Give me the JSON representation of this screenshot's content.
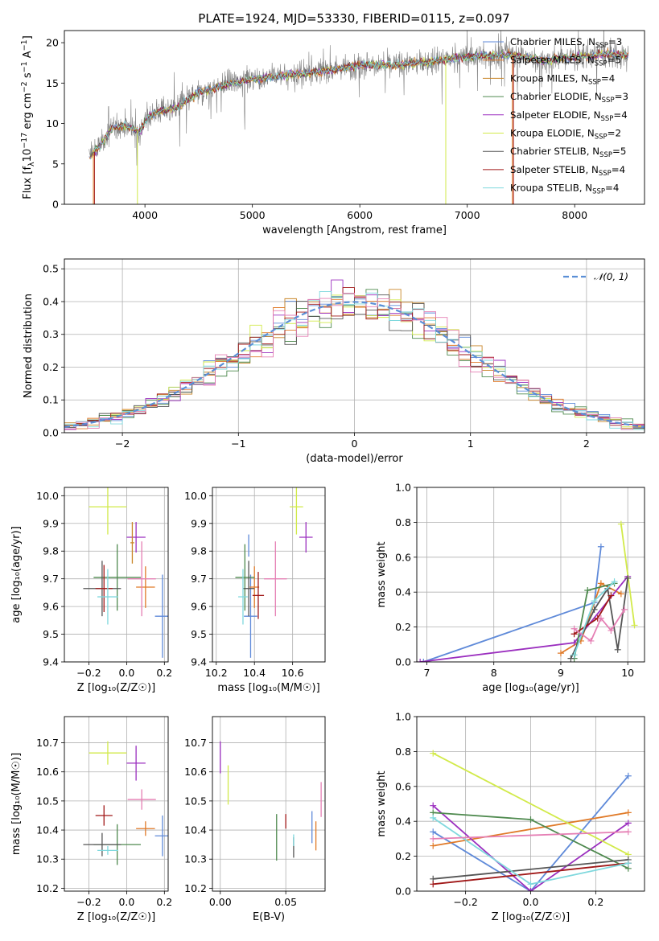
{
  "figure": {
    "title": "PLATE=1924, MJD=53330, FIBERID=0115, z=0.097"
  },
  "models": [
    {
      "label": "Chabrier MILES, N",
      "sub": "SSP",
      "tail": "=3",
      "color": "#5f8ad9"
    },
    {
      "label": "Salpeter MILES, N",
      "sub": "SSP",
      "tail": "=5",
      "color": "#e07a28"
    },
    {
      "label": "Kroupa MILES, N",
      "sub": "SSP",
      "tail": "=4",
      "color": "#c9862a"
    },
    {
      "label": "Chabrier ELODIE, N",
      "sub": "SSP",
      "tail": "=3",
      "color": "#4f8a4f"
    },
    {
      "label": "Salpeter ELODIE, N",
      "sub": "SSP",
      "tail": "=4",
      "color": "#9b2fbf"
    },
    {
      "label": "Kroupa ELODIE, N",
      "sub": "SSP",
      "tail": "=2",
      "color": "#d2ea4a"
    },
    {
      "label": "Chabrier STELIB, N",
      "sub": "SSP",
      "tail": "=5",
      "color": "#555555"
    },
    {
      "label": "Salpeter STELIB, N",
      "sub": "SSP",
      "tail": "=4",
      "color": "#a01818"
    },
    {
      "label": "Kroupa STELIB, N",
      "sub": "SSP",
      "tail": "=4",
      "color": "#7fd8dd"
    }
  ],
  "extra_colors": {
    "pink": "#e57fb4",
    "data_gray": "#808080",
    "normal_curve": "#5b8fd6",
    "grid": "#b0b0b0"
  },
  "chart_data": [
    {
      "id": "spectrum",
      "type": "line",
      "xlabel": "wavelength [Angstrom, rest frame]",
      "ylabel_pre": "Flux [f",
      "ylabel_sub": "λ",
      "ylabel_mid": "10",
      "ylabel_sup1": "−17",
      "ylabel_post": " erg cm",
      "ylabel_sup2": "−2",
      "ylabel_s": " s",
      "ylabel_sup3": "−1",
      "ylabel_A": " A",
      "ylabel_sup4": "−1",
      "ylabel_end": "]",
      "xlim": [
        3250,
        8650
      ],
      "ylim": [
        0,
        21.5
      ],
      "xticks": [
        "4000",
        "5000",
        "6000",
        "7000",
        "8000"
      ],
      "yticks": [
        "0",
        "5",
        "10",
        "15",
        "20"
      ],
      "continuum_nodes": [
        [
          3480,
          5.8
        ],
        [
          3600,
          7.5
        ],
        [
          3700,
          9.5
        ],
        [
          3800,
          9.8
        ],
        [
          3950,
          9.0
        ],
        [
          4050,
          11.2
        ],
        [
          4300,
          12.0
        ],
        [
          4500,
          13.8
        ],
        [
          4800,
          15.0
        ],
        [
          5000,
          15.5
        ],
        [
          5200,
          15.8
        ],
        [
          5500,
          16.2
        ],
        [
          5800,
          16.8
        ],
        [
          6000,
          17.3
        ],
        [
          6300,
          17.2
        ],
        [
          6600,
          17.6
        ],
        [
          6900,
          18.1
        ],
        [
          7100,
          18.4
        ],
        [
          7400,
          18.5
        ],
        [
          7700,
          17.8
        ],
        [
          8000,
          18.2
        ],
        [
          8300,
          18.6
        ],
        [
          8500,
          18.3
        ]
      ]
    },
    {
      "id": "residuals",
      "type": "histogram",
      "xlabel": "(data-model)/error",
      "ylabel": "Normed distribution",
      "legend_label": "𝒩(0, 1)",
      "legend_position": "top-right",
      "xlim": [
        -2.5,
        2.5
      ],
      "ylim": [
        0,
        0.53
      ],
      "xticks": [
        "−2",
        "−1",
        "0",
        "1",
        "2"
      ],
      "yticks": [
        "0.0",
        "0.1",
        "0.2",
        "0.3",
        "0.4",
        "0.5"
      ],
      "bin_width": 0.1
    },
    {
      "id": "age_vs_Z",
      "type": "scatter",
      "xlabel": "Z [log₁₀(Z/Z☉)]",
      "ylabel": "age  [log₁₀(age/yr)]",
      "xlim": [
        -0.33,
        0.22
      ],
      "ylim": [
        9.4,
        10.03
      ],
      "xticks": [
        "−0.2",
        "0.0",
        "0.2"
      ],
      "yticks": [
        "9.4",
        "9.5",
        "9.6",
        "9.7",
        "9.8",
        "9.9",
        "10.0"
      ],
      "points": [
        {
          "c": "#5f8ad9",
          "x": 0.19,
          "xe": 0.08,
          "y": 9.565,
          "ye": 0.3
        },
        {
          "c": "#e07a28",
          "x": 0.1,
          "xe": 0.1,
          "y": 9.67,
          "ye": 0.15
        },
        {
          "c": "#9b2fbf",
          "x": 0.05,
          "xe": 0.1,
          "y": 9.85,
          "ye": 0.11
        },
        {
          "c": "#d2ea4a",
          "x": -0.1,
          "xe": 0.2,
          "y": 9.96,
          "ye": 0.2
        },
        {
          "c": "#4f8a4f",
          "x": -0.05,
          "xe": 0.25,
          "y": 9.705,
          "ye": 0.24
        },
        {
          "c": "#555555",
          "x": -0.13,
          "xe": 0.2,
          "y": 9.665,
          "ye": 0.2
        },
        {
          "c": "#a01818",
          "x": -0.12,
          "xe": 0.09,
          "y": 9.665,
          "ye": 0.17
        },
        {
          "c": "#7fd8dd",
          "x": -0.1,
          "xe": 0.11,
          "y": 9.635,
          "ye": 0.2
        },
        {
          "c": "#e57fb4",
          "x": 0.08,
          "xe": 0.15,
          "y": 9.7,
          "ye": 0.27
        },
        {
          "c": "#c9862a",
          "x": 0.03,
          "xe": 0.02,
          "y": 9.83,
          "ye": 0.15
        }
      ]
    },
    {
      "id": "age_vs_mass",
      "type": "scatter",
      "xlabel": "mass [log₁₀(M/M☉)]",
      "xlim": [
        10.18,
        10.77
      ],
      "ylim": [
        9.4,
        10.03
      ],
      "xticks": [
        "10.2",
        "10.4",
        "10.6"
      ],
      "yticks": [
        "9.4",
        "9.5",
        "9.6",
        "9.7",
        "9.8",
        "9.9",
        "10.0"
      ],
      "points": [
        {
          "c": "#5f8ad9",
          "x": 10.38,
          "xe": 0.07,
          "y": 9.565,
          "ye": 0.3
        },
        {
          "c": "#e07a28",
          "x": 10.4,
          "xe": 0.05,
          "y": 9.67,
          "ye": 0.15
        },
        {
          "c": "#9b2fbf",
          "x": 10.67,
          "xe": 0.07,
          "y": 9.85,
          "ye": 0.11
        },
        {
          "c": "#d2ea4a",
          "x": 10.62,
          "xe": 0.07,
          "y": 9.96,
          "ye": 0.2
        },
        {
          "c": "#4f8a4f",
          "x": 10.35,
          "xe": 0.1,
          "y": 9.705,
          "ye": 0.24
        },
        {
          "c": "#555555",
          "x": 10.37,
          "xe": 0.06,
          "y": 9.665,
          "ye": 0.2
        },
        {
          "c": "#a01818",
          "x": 10.42,
          "xe": 0.06,
          "y": 9.64,
          "ye": 0.17
        },
        {
          "c": "#7fd8dd",
          "x": 10.34,
          "xe": 0.05,
          "y": 9.635,
          "ye": 0.2
        },
        {
          "c": "#e57fb4",
          "x": 10.51,
          "xe": 0.12,
          "y": 9.7,
          "ye": 0.27
        },
        {
          "c": "#5f8ad9",
          "x": 10.37,
          "xe": 0.0,
          "y": 9.82,
          "ye": 0.08
        }
      ]
    },
    {
      "id": "weight_vs_age",
      "type": "line",
      "xlabel": "age  [log₁₀(age/yr)]",
      "ylabel": "mass weight",
      "xlim": [
        6.85,
        10.25
      ],
      "ylim": [
        0,
        1.0
      ],
      "xticks": [
        "7",
        "8",
        "9",
        "10"
      ],
      "yticks": [
        "0.0",
        "0.2",
        "0.4",
        "0.6",
        "0.8",
        "1.0"
      ],
      "series": [
        {
          "c": "#5f8ad9",
          "x": [
            6.95,
            9.5,
            9.6
          ],
          "y": [
            0.0,
            0.34,
            0.66
          ]
        },
        {
          "c": "#e07a28",
          "x": [
            9.0,
            9.3,
            9.6,
            9.9
          ],
          "y": [
            0.05,
            0.12,
            0.45,
            0.39
          ]
        },
        {
          "c": "#9b2fbf",
          "x": [
            6.9,
            9.2,
            10.0
          ],
          "y": [
            0.0,
            0.11,
            0.49
          ]
        },
        {
          "c": "#d2ea4a",
          "x": [
            9.9,
            10.1
          ],
          "y": [
            0.79,
            0.21
          ]
        },
        {
          "c": "#4f8a4f",
          "x": [
            9.2,
            9.4,
            9.8
          ],
          "y": [
            0.02,
            0.41,
            0.45
          ]
        },
        {
          "c": "#555555",
          "x": [
            9.15,
            9.5,
            9.7,
            9.85,
            10.0
          ],
          "y": [
            0.02,
            0.3,
            0.42,
            0.07,
            0.48
          ]
        },
        {
          "c": "#a01818",
          "x": [
            9.2,
            9.55,
            9.75
          ],
          "y": [
            0.16,
            0.25,
            0.38
          ]
        },
        {
          "c": "#7fd8dd",
          "x": [
            9.2,
            9.5,
            9.8
          ],
          "y": [
            0.04,
            0.35,
            0.46
          ]
        },
        {
          "c": "#e57fb4",
          "x": [
            9.2,
            9.45,
            9.6,
            9.75,
            9.95
          ],
          "y": [
            0.19,
            0.12,
            0.25,
            0.18,
            0.3
          ]
        }
      ]
    },
    {
      "id": "mass_vs_Z",
      "type": "scatter",
      "xlabel": "Z [log₁₀(Z/Z☉)]",
      "ylabel": "mass [log₁₀(M/M☉)]",
      "xlim": [
        -0.33,
        0.22
      ],
      "ylim": [
        10.19,
        10.79
      ],
      "xticks": [
        "−0.2",
        "0.0",
        "0.2"
      ],
      "yticks": [
        "10.2",
        "10.3",
        "10.4",
        "10.5",
        "10.6",
        "10.7"
      ],
      "points": [
        {
          "c": "#5f8ad9",
          "x": 0.19,
          "xe": 0.08,
          "y": 10.38,
          "ye": 0.14
        },
        {
          "c": "#e07a28",
          "x": 0.1,
          "xe": 0.1,
          "y": 10.405,
          "ye": 0.05
        },
        {
          "c": "#9b2fbf",
          "x": 0.05,
          "xe": 0.1,
          "y": 10.63,
          "ye": 0.12
        },
        {
          "c": "#d2ea4a",
          "x": -0.1,
          "xe": 0.2,
          "y": 10.665,
          "ye": 0.08
        },
        {
          "c": "#4f8a4f",
          "x": -0.05,
          "xe": 0.25,
          "y": 10.35,
          "ye": 0.14
        },
        {
          "c": "#555555",
          "x": -0.13,
          "xe": 0.2,
          "y": 10.35,
          "ye": 0.08
        },
        {
          "c": "#a01818",
          "x": -0.12,
          "xe": 0.09,
          "y": 10.45,
          "ye": 0.07
        },
        {
          "c": "#7fd8dd",
          "x": -0.1,
          "xe": 0.11,
          "y": 10.33,
          "ye": 0.03
        },
        {
          "c": "#e57fb4",
          "x": 0.08,
          "xe": 0.15,
          "y": 10.505,
          "ye": 0.07
        },
        {
          "c": "#d2ea4a",
          "x": -0.1,
          "xe": 0.0,
          "y": 10.5,
          "ye": 0.0
        }
      ]
    },
    {
      "id": "mass_vs_ebv",
      "type": "scatter",
      "xlabel": "E(B-V)",
      "xlim": [
        -0.006,
        0.08
      ],
      "ylim": [
        10.19,
        10.79
      ],
      "xticks": [
        "0.00",
        "0.05"
      ],
      "yticks": [
        "10.2",
        "10.3",
        "10.4",
        "10.5",
        "10.6",
        "10.7"
      ],
      "points": [
        {
          "c": "#9b2fbf",
          "x": 0.0,
          "y": 10.65,
          "ye": 0.11
        },
        {
          "c": "#d2ea4a",
          "x": 0.006,
          "y": 10.555,
          "ye": 0.135
        },
        {
          "c": "#4f8a4f",
          "x": 0.043,
          "y": 10.375,
          "ye": 0.16
        },
        {
          "c": "#a01818",
          "x": 0.05,
          "y": 10.43,
          "ye": 0.05
        },
        {
          "c": "#555555",
          "x": 0.056,
          "y": 10.34,
          "ye": 0.07
        },
        {
          "c": "#7fd8dd",
          "x": 0.056,
          "y": 10.365,
          "ye": 0.04
        },
        {
          "c": "#5f8ad9",
          "x": 0.07,
          "y": 10.41,
          "ye": 0.11
        },
        {
          "c": "#e07a28",
          "x": 0.073,
          "y": 10.38,
          "ye": 0.1
        },
        {
          "c": "#e57fb4",
          "x": 0.077,
          "y": 10.505,
          "ye": 0.12
        }
      ]
    },
    {
      "id": "weight_vs_Z",
      "type": "line",
      "xlabel": "Z [log₁₀(Z/Z☉)]",
      "ylabel": "mass weight",
      "xlim": [
        -0.35,
        0.35
      ],
      "ylim": [
        0,
        1.0
      ],
      "xticks": [
        "−0.2",
        "0.0",
        "0.2"
      ],
      "yticks": [
        "0.0",
        "0.2",
        "0.4",
        "0.6",
        "0.8",
        "1.0"
      ],
      "series": [
        {
          "c": "#5f8ad9",
          "x": [
            -0.3,
            0.0,
            0.3
          ],
          "y": [
            0.34,
            0.0,
            0.66
          ]
        },
        {
          "c": "#e07a28",
          "x": [
            -0.3,
            0.3
          ],
          "y": [
            0.26,
            0.45
          ]
        },
        {
          "c": "#9b2fbf",
          "x": [
            -0.3,
            0.0,
            0.3
          ],
          "y": [
            0.49,
            0.0,
            0.39
          ]
        },
        {
          "c": "#d2ea4a",
          "x": [
            -0.3,
            0.3
          ],
          "y": [
            0.79,
            0.21
          ]
        },
        {
          "c": "#4f8a4f",
          "x": [
            -0.3,
            0.0,
            0.3
          ],
          "y": [
            0.45,
            0.41,
            0.13
          ]
        },
        {
          "c": "#555555",
          "x": [
            -0.3,
            0.3
          ],
          "y": [
            0.07,
            0.18
          ]
        },
        {
          "c": "#a01818",
          "x": [
            -0.3,
            0.3
          ],
          "y": [
            0.04,
            0.16
          ]
        },
        {
          "c": "#7fd8dd",
          "x": [
            -0.3,
            0.0,
            0.3
          ],
          "y": [
            0.42,
            0.04,
            0.16
          ]
        },
        {
          "c": "#e57fb4",
          "x": [
            -0.3,
            0.3
          ],
          "y": [
            0.3,
            0.34
          ]
        }
      ]
    }
  ]
}
